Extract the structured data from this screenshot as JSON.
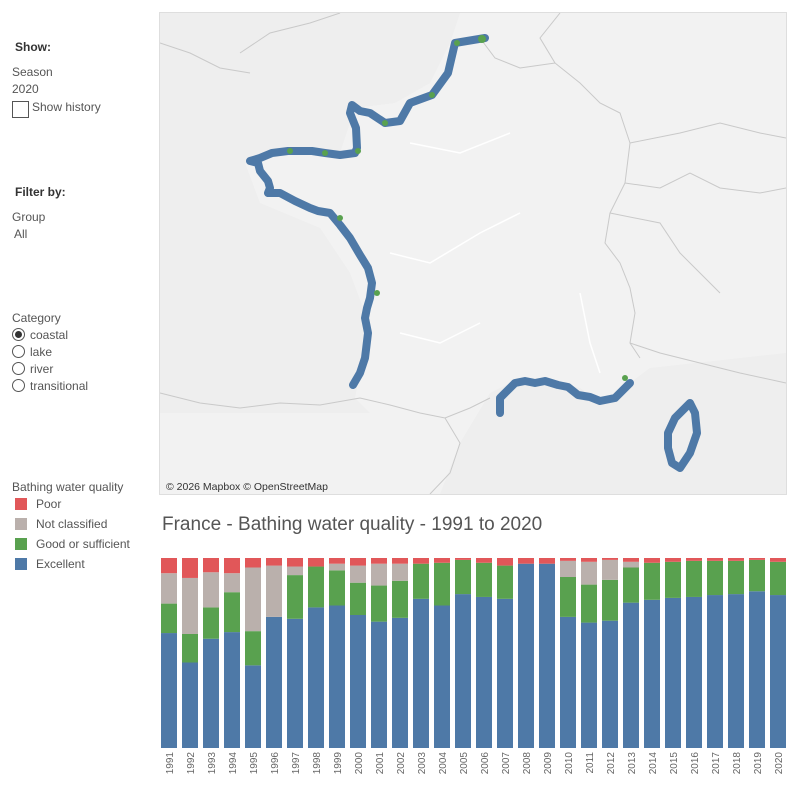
{
  "sidebar": {
    "show_heading": "Show:",
    "season_label": "Season",
    "season_value": "2020",
    "show_history_label": "Show history",
    "filter_heading": "Filter by:",
    "group_label": "Group",
    "group_value": "All",
    "category_label": "Category",
    "category_options": [
      {
        "label": "coastal",
        "selected": true
      },
      {
        "label": "lake",
        "selected": false
      },
      {
        "label": "river",
        "selected": false
      },
      {
        "label": "transitional",
        "selected": false
      }
    ],
    "legend_title": "Bathing water quality",
    "legend": [
      {
        "label": "Poor",
        "color": "#e15759"
      },
      {
        "label": "Not classified",
        "color": "#bab0ac"
      },
      {
        "label": "Good or sufficient",
        "color": "#59a14f"
      },
      {
        "label": "Excellent",
        "color": "#4e79a7"
      }
    ]
  },
  "map": {
    "attribution": "© 2026 Mapbox © OpenStreetMap",
    "colors": {
      "land": "#f2f2f2",
      "border": "#c8c8c8",
      "excellent": "#4e79a7",
      "good": "#59a14f"
    }
  },
  "chart_data": {
    "type": "bar",
    "stacked": true,
    "normalized": true,
    "title": "France - Bathing water quality - 1991 to 2020",
    "categories": [
      "1991",
      "1992",
      "1993",
      "1994",
      "1995",
      "1996",
      "1997",
      "1998",
      "1999",
      "2000",
      "2001",
      "2002",
      "2003",
      "2004",
      "2005",
      "2006",
      "2007",
      "2008",
      "2009",
      "2010",
      "2011",
      "2012",
      "2013",
      "2014",
      "2015",
      "2016",
      "2017",
      "2018",
      "2019",
      "2020"
    ],
    "series": [
      {
        "name": "Excellent",
        "color": "#4e79a7",
        "values": [
          60.5,
          45,
          57.5,
          61,
          43.5,
          69,
          68,
          74,
          75,
          70,
          66.5,
          68.5,
          78.5,
          75,
          81,
          79.5,
          78.5,
          97,
          97,
          69,
          66,
          67,
          76.5,
          78,
          79,
          79.5,
          80.5,
          81,
          82.5,
          80.5
        ]
      },
      {
        "name": "Good or sufficient",
        "color": "#59a14f",
        "values": [
          15.5,
          15,
          16.5,
          21,
          18,
          0,
          23,
          21.5,
          18.5,
          17,
          19,
          19.5,
          18.5,
          22.5,
          18,
          18,
          17.5,
          0,
          0,
          21,
          20,
          21.5,
          18.5,
          19.5,
          19,
          19,
          18,
          17.5,
          16.5,
          17.5
        ]
      },
      {
        "name": "Not classified",
        "color": "#bab0ac",
        "values": [
          16,
          29.5,
          18.5,
          10,
          33.5,
          27,
          4.5,
          0,
          3.5,
          9,
          11.5,
          9,
          0,
          0,
          0,
          0,
          0,
          0,
          0,
          8.5,
          12,
          10.5,
          3,
          0,
          0,
          0,
          0,
          0,
          0,
          0
        ]
      },
      {
        "name": "Poor",
        "color": "#e15759",
        "values": [
          8,
          10.5,
          7.5,
          8,
          5,
          4,
          4.5,
          4.5,
          3,
          4,
          3,
          3,
          3,
          2.5,
          1,
          2.5,
          4,
          3,
          3,
          1.5,
          2,
          1,
          2,
          2.5,
          2,
          1.5,
          1.5,
          1.5,
          1,
          2
        ]
      }
    ],
    "ylim": [
      0,
      100
    ],
    "xlabel": "",
    "ylabel": ""
  }
}
